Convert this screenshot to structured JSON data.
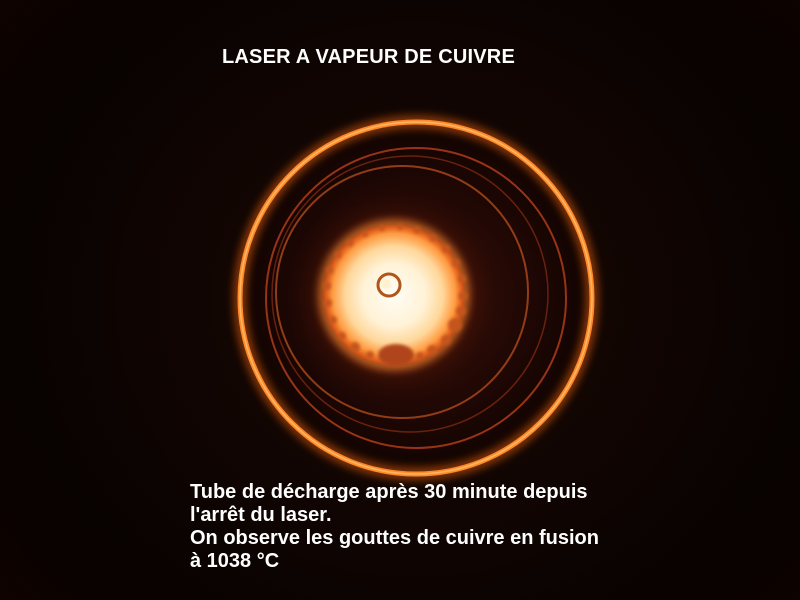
{
  "title": "LASER A VAPEUR DE CUIVRE",
  "caption": {
    "lines": [
      "Tube de décharge après 30 minute depuis",
      "l'arrêt du laser.",
      "On observe les gouttes de cuivre en fusion",
      "à 1038 °C"
    ]
  },
  "colors": {
    "outer_ring": "#ff7a1e",
    "inner_ring": "#c8461a",
    "glow_core": "#fff6e4",
    "glow_edge": "#ff8a30",
    "text": "#ffffff"
  }
}
